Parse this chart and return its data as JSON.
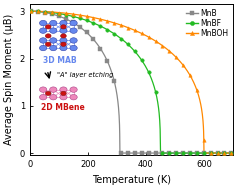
{
  "title": "",
  "xlabel": "Temperature (K)",
  "ylabel": "Average Spin Moment (μB)",
  "xlim": [
    0,
    700
  ],
  "ylim": [
    -0.05,
    3.15
  ],
  "yticks": [
    0,
    1,
    2,
    3
  ],
  "xticks": [
    0,
    200,
    400,
    600
  ],
  "series": {
    "MnB": {
      "color": "#888888",
      "marker": "s",
      "Tc": 310,
      "moment": 3.0,
      "beta": 0.32
    },
    "MnBF": {
      "color": "#22bb22",
      "marker": "o",
      "Tc": 450,
      "moment": 3.0,
      "beta": 0.32
    },
    "MnBOH": {
      "color": "#ff8800",
      "marker": "^",
      "Tc": 600,
      "moment": 3.0,
      "beta": 0.32
    }
  },
  "background_color": "#ffffff",
  "legend_fontsize": 5.5,
  "axis_fontsize": 7.0,
  "tick_fontsize": 6.0
}
